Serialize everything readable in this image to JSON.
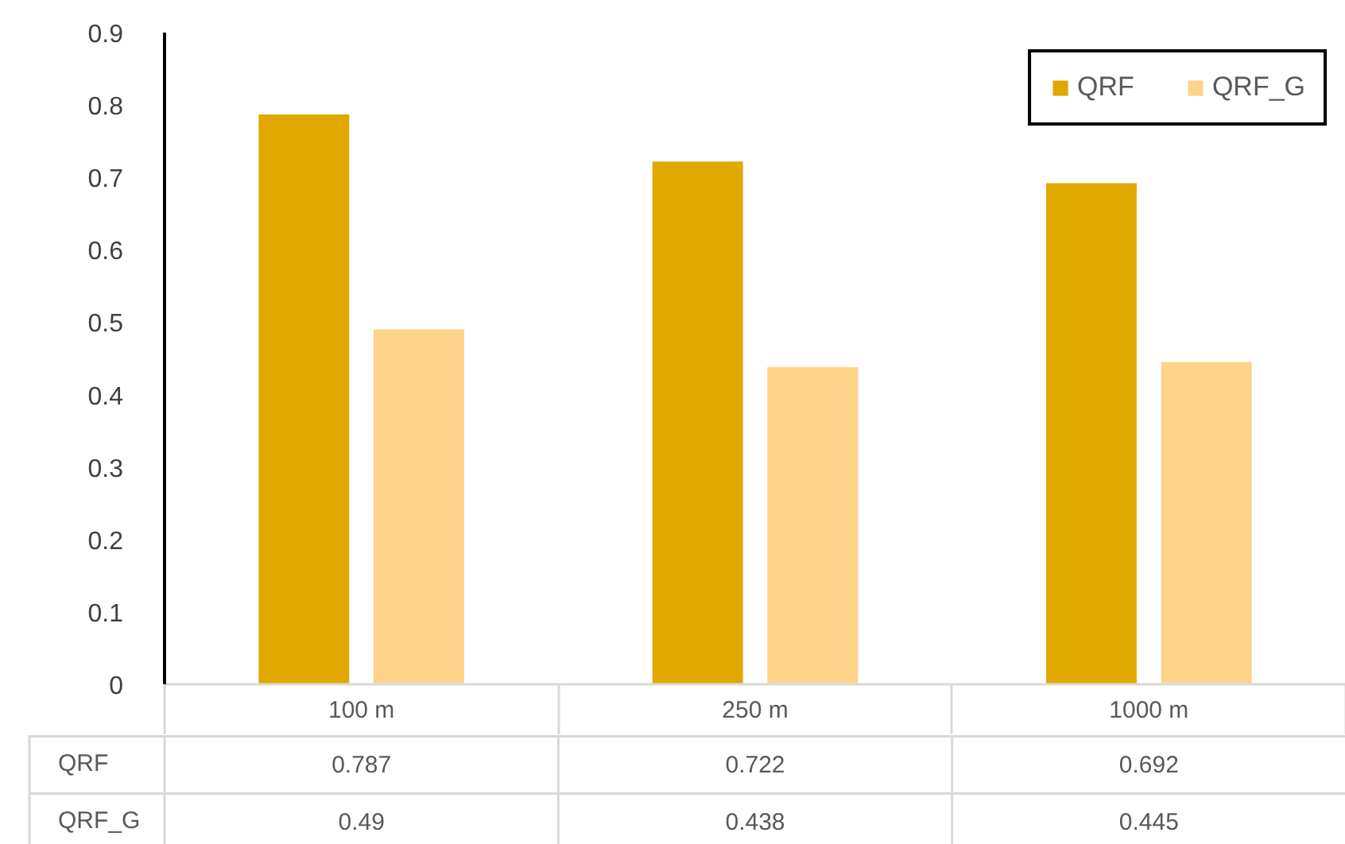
{
  "chart_data": {
    "type": "bar",
    "categories": [
      "100 m",
      "250 m",
      "1000 m"
    ],
    "series": [
      {
        "name": "QRF",
        "color": "#e1a800",
        "values": [
          0.787,
          0.722,
          0.692
        ]
      },
      {
        "name": "QRF_G",
        "color": "#ffd38a",
        "values": [
          0.49,
          0.438,
          0.445
        ]
      }
    ],
    "ylim": [
      0,
      0.9
    ],
    "yticks": [
      0,
      0.1,
      0.2,
      0.3,
      0.4,
      0.5,
      0.6,
      0.7,
      0.8,
      0.9
    ],
    "legend": "top right",
    "data_labels": true
  }
}
